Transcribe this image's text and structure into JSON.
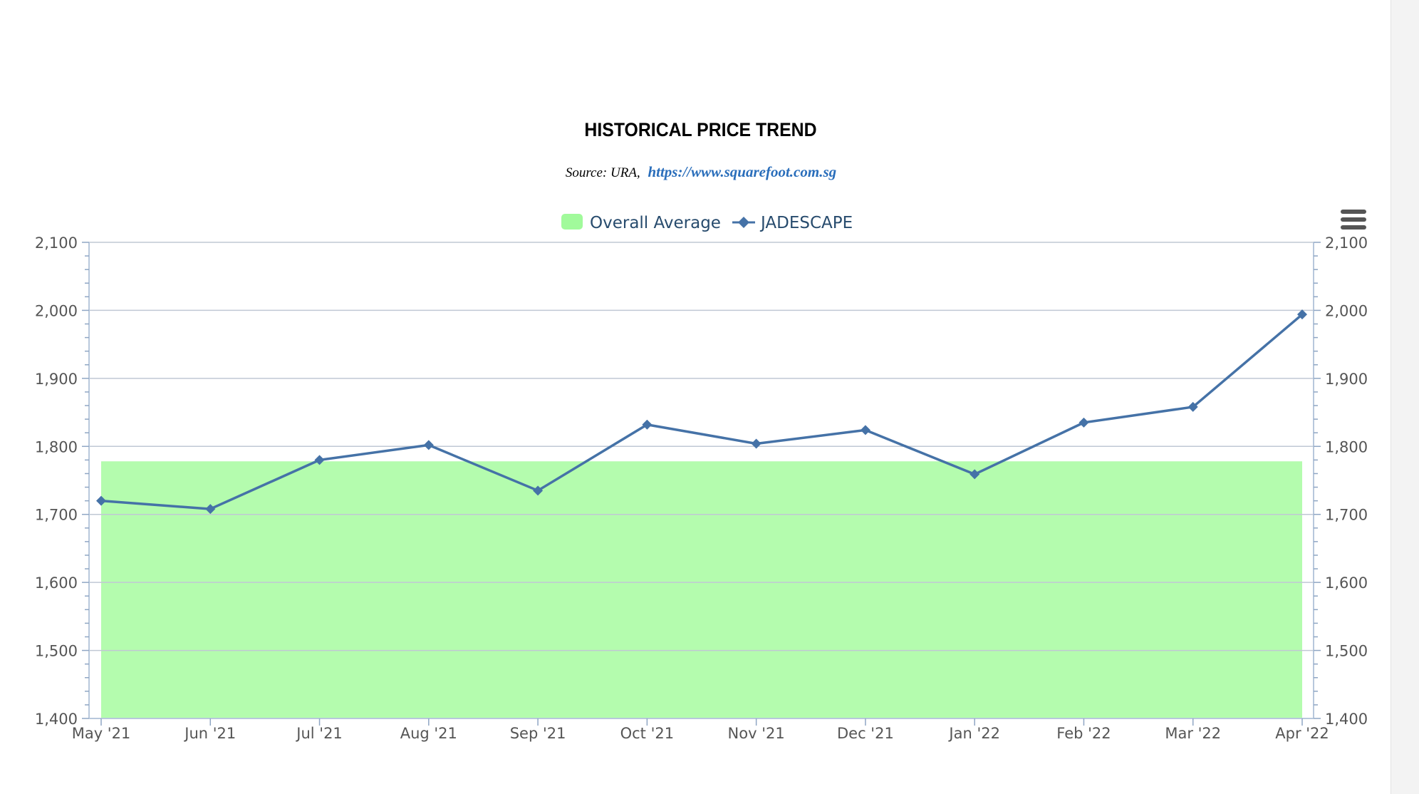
{
  "chart_data": {
    "type": "line",
    "title": "HISTORICAL PRICE TREND",
    "subtitle": {
      "prefix": "Source: URA,",
      "link": "https://www.squarefoot.com.sg"
    },
    "categories": [
      "May '21",
      "Jun '21",
      "Jul '21",
      "Aug '21",
      "Sep '21",
      "Oct '21",
      "Nov '21",
      "Dec '21",
      "Jan '22",
      "Feb '22",
      "Mar '22",
      "Apr '22"
    ],
    "series": [
      {
        "name": "Overall Average",
        "kind": "area",
        "color": "#b4fcae",
        "legend_color": "#a1fa9b",
        "values": [
          1778,
          1778,
          1778,
          1778,
          1778,
          1778,
          1778,
          1778,
          1778,
          1778,
          1778,
          1778
        ]
      },
      {
        "name": "JADESCAPE",
        "kind": "line",
        "color": "#4572a7",
        "values": [
          1720,
          1708,
          1780,
          1802,
          1735,
          1832,
          1804,
          1824,
          1759,
          1835,
          1858,
          1994
        ]
      }
    ],
    "ylim": [
      1400,
      2100
    ],
    "yticks": [
      1400,
      1500,
      1600,
      1700,
      1800,
      1900,
      2000,
      2100
    ],
    "ytick_labels": [
      "1,400",
      "1,500",
      "1,600",
      "1,700",
      "1,800",
      "1,900",
      "2,000",
      "2,100"
    ],
    "grid": true,
    "legend_position": "top-center",
    "dual_y_axis": true,
    "colors": {
      "grid": "#c0c8d4",
      "axis": "#b8c8dc",
      "tick_text": "#555555",
      "legend_text": "#274b6d",
      "link": "#2a6ebb"
    }
  },
  "menu": {
    "icon": "hamburger-menu-icon"
  }
}
